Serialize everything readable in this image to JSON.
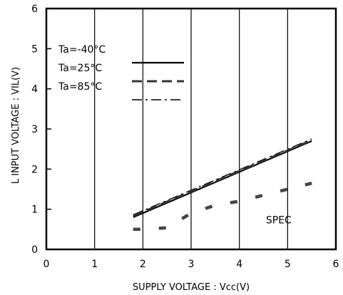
{
  "chart_data": {
    "type": "line",
    "title": "",
    "xlabel": "SUPPLY VOLTAGE : Vcc(V)",
    "ylabel": "L INPUT VOLTAGE : VIL(V)",
    "xlim": [
      0,
      6
    ],
    "ylim": [
      0,
      6
    ],
    "xticks": [
      "0",
      "1",
      "2",
      "3",
      "4",
      "5",
      "6"
    ],
    "yticks": [
      "0",
      "1",
      "2",
      "3",
      "4",
      "5",
      "6"
    ],
    "grid": "vertical",
    "legend_position": "top-left",
    "series": [
      {
        "name": "Ta=-40°C",
        "style": "solid",
        "x": [
          1.8,
          5.5
        ],
        "y": [
          0.8,
          2.7
        ]
      },
      {
        "name": "Ta=25°C",
        "style": "dashed",
        "x": [
          1.8,
          5.5
        ],
        "y": [
          0.83,
          2.72
        ]
      },
      {
        "name": "Ta=85°C",
        "style": "dashdot",
        "x": [
          1.8,
          5.5
        ],
        "y": [
          0.86,
          2.75
        ]
      },
      {
        "name": "SPEC",
        "style": "dashed",
        "x": [
          1.8,
          2.0,
          2.5,
          3.0,
          3.5,
          4.0,
          4.5,
          5.0,
          5.5
        ],
        "y": [
          0.5,
          0.5,
          0.54,
          0.9,
          1.1,
          1.2,
          1.35,
          1.5,
          1.65
        ]
      }
    ],
    "annotations": [
      {
        "text": "SPEC",
        "x": 4.55,
        "y": 0.65
      }
    ]
  }
}
